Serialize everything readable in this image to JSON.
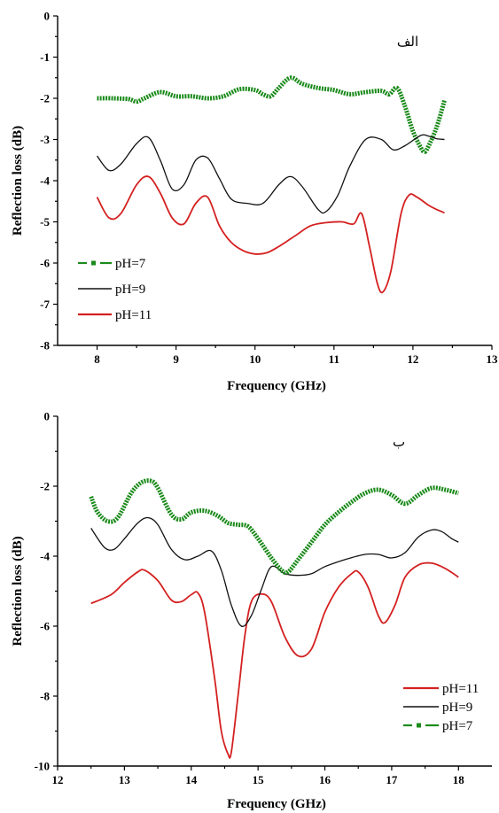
{
  "chart_data": [
    {
      "type": "line",
      "panel_label": "الف",
      "xlabel": "Frequency (GHz)",
      "ylabel": "Reflection loss (dB)",
      "xlim": [
        7.5,
        13
      ],
      "ylim": [
        -8,
        0
      ],
      "xticks": [
        "8",
        "9",
        "10",
        "11",
        "12",
        "13"
      ],
      "yticks": [
        "0",
        "-1",
        "-2",
        "-3",
        "-4",
        "-5",
        "-6",
        "-7",
        "-8"
      ],
      "legend_position": "bottom-left",
      "series": [
        {
          "name": "pH=7",
          "color": "#1a8a1a",
          "style": "dash-dot",
          "x": [
            8.0,
            8.2,
            8.4,
            8.5,
            8.6,
            8.8,
            9.0,
            9.2,
            9.4,
            9.6,
            9.8,
            10.0,
            10.1,
            10.2,
            10.3,
            10.45,
            10.6,
            10.8,
            11.0,
            11.2,
            11.4,
            11.6,
            11.7,
            11.8,
            11.9,
            12.0,
            12.1,
            12.15,
            12.2,
            12.3,
            12.4
          ],
          "y": [
            -2.0,
            -2.0,
            -2.02,
            -2.08,
            -2.0,
            -1.85,
            -1.95,
            -1.95,
            -2.0,
            -1.95,
            -1.78,
            -1.8,
            -1.9,
            -1.95,
            -1.75,
            -1.5,
            -1.65,
            -1.75,
            -1.8,
            -1.9,
            -1.85,
            -1.82,
            -1.9,
            -1.75,
            -2.2,
            -2.8,
            -3.2,
            -3.3,
            -3.15,
            -2.7,
            -2.05
          ]
        },
        {
          "name": "pH=9",
          "color": "#111111",
          "style": "solid",
          "x": [
            8.0,
            8.15,
            8.3,
            8.5,
            8.65,
            8.8,
            8.95,
            9.1,
            9.25,
            9.4,
            9.55,
            9.7,
            9.9,
            10.1,
            10.3,
            10.45,
            10.6,
            10.8,
            10.9,
            11.05,
            11.2,
            11.4,
            11.6,
            11.75,
            11.9,
            12.1,
            12.2,
            12.3,
            12.4
          ],
          "y": [
            -3.4,
            -3.75,
            -3.6,
            -3.1,
            -2.95,
            -3.5,
            -4.2,
            -4.1,
            -3.5,
            -3.45,
            -3.95,
            -4.45,
            -4.55,
            -4.55,
            -4.1,
            -3.9,
            -4.15,
            -4.7,
            -4.75,
            -4.35,
            -3.65,
            -3.0,
            -3.0,
            -3.25,
            -3.15,
            -2.9,
            -2.92,
            -2.98,
            -3.0
          ]
        },
        {
          "name": "pH=11",
          "color": "#d42020",
          "style": "solid",
          "x": [
            8.0,
            8.15,
            8.3,
            8.5,
            8.65,
            8.8,
            8.95,
            9.1,
            9.25,
            9.4,
            9.55,
            9.7,
            9.85,
            10.0,
            10.15,
            10.3,
            10.5,
            10.7,
            10.9,
            11.1,
            11.25,
            11.35,
            11.45,
            11.55,
            11.62,
            11.72,
            11.85,
            11.95,
            12.05,
            12.2,
            12.3,
            12.4
          ],
          "y": [
            -4.4,
            -4.9,
            -4.8,
            -4.1,
            -3.9,
            -4.3,
            -4.9,
            -5.05,
            -4.55,
            -4.4,
            -5.1,
            -5.5,
            -5.7,
            -5.78,
            -5.75,
            -5.6,
            -5.35,
            -5.1,
            -5.02,
            -5.0,
            -5.05,
            -4.8,
            -5.6,
            -6.5,
            -6.7,
            -6.2,
            -4.8,
            -4.35,
            -4.4,
            -4.6,
            -4.7,
            -4.78
          ]
        }
      ]
    },
    {
      "type": "line",
      "panel_label": "ب",
      "xlabel": "Frequency (GHz)",
      "ylabel": "Reflection loss (dB)",
      "xlim": [
        12,
        18.5
      ],
      "ylim": [
        -10,
        0
      ],
      "xticks": [
        "12",
        "13",
        "14",
        "15",
        "16",
        "17",
        "18"
      ],
      "yticks": [
        "0",
        "-2",
        "-4",
        "-6",
        "-8",
        "-10"
      ],
      "legend_position": "bottom-right",
      "series": [
        {
          "name": "pH=11",
          "color": "#d42020",
          "style": "solid",
          "x": [
            12.5,
            12.8,
            13.0,
            13.2,
            13.3,
            13.5,
            13.7,
            13.85,
            14.0,
            14.1,
            14.2,
            14.35,
            14.45,
            14.55,
            14.6,
            14.7,
            14.8,
            14.9,
            15.05,
            15.2,
            15.4,
            15.6,
            15.8,
            16.0,
            16.2,
            16.4,
            16.5,
            16.65,
            16.8,
            16.9,
            17.05,
            17.2,
            17.4,
            17.6,
            17.8,
            18.0
          ],
          "y": [
            -5.35,
            -5.1,
            -4.75,
            -4.45,
            -4.4,
            -4.7,
            -5.25,
            -5.3,
            -5.1,
            -5.05,
            -5.6,
            -7.5,
            -9.0,
            -9.65,
            -9.6,
            -8.0,
            -6.3,
            -5.3,
            -5.08,
            -5.3,
            -6.3,
            -6.85,
            -6.65,
            -5.6,
            -4.9,
            -4.5,
            -4.45,
            -4.9,
            -5.7,
            -5.9,
            -5.4,
            -4.6,
            -4.25,
            -4.2,
            -4.35,
            -4.6
          ]
        },
        {
          "name": "pH=9",
          "color": "#111111",
          "style": "solid",
          "x": [
            12.5,
            12.7,
            12.85,
            13.0,
            13.2,
            13.35,
            13.5,
            13.7,
            13.9,
            14.1,
            14.3,
            14.45,
            14.6,
            14.75,
            14.9,
            15.05,
            15.2,
            15.4,
            15.6,
            15.8,
            16.0,
            16.3,
            16.6,
            16.8,
            17.0,
            17.2,
            17.4,
            17.6,
            17.75,
            17.9,
            18.0
          ],
          "y": [
            -3.2,
            -3.75,
            -3.8,
            -3.5,
            -3.05,
            -2.9,
            -3.1,
            -3.8,
            -4.1,
            -4.0,
            -3.85,
            -4.4,
            -5.4,
            -6.0,
            -5.7,
            -4.95,
            -4.3,
            -4.5,
            -4.55,
            -4.5,
            -4.3,
            -4.1,
            -3.95,
            -3.95,
            -4.05,
            -3.9,
            -3.45,
            -3.25,
            -3.3,
            -3.5,
            -3.6
          ]
        },
        {
          "name": "pH=7",
          "color": "#1a8a1a",
          "style": "dash-dot",
          "x": [
            12.5,
            12.6,
            12.75,
            12.9,
            13.1,
            13.25,
            13.4,
            13.5,
            13.7,
            13.85,
            14.0,
            14.2,
            14.4,
            14.55,
            14.7,
            14.85,
            15.0,
            15.2,
            15.35,
            15.45,
            15.6,
            15.8,
            16.0,
            16.2,
            16.4,
            16.6,
            16.8,
            17.0,
            17.2,
            17.4,
            17.6,
            17.8,
            18.0
          ],
          "y": [
            -2.3,
            -2.75,
            -3.0,
            -2.9,
            -2.2,
            -1.9,
            -1.85,
            -2.05,
            -2.8,
            -2.95,
            -2.75,
            -2.7,
            -2.85,
            -3.05,
            -3.1,
            -3.15,
            -3.5,
            -4.05,
            -4.4,
            -4.45,
            -4.1,
            -3.6,
            -3.1,
            -2.75,
            -2.45,
            -2.2,
            -2.1,
            -2.25,
            -2.5,
            -2.25,
            -2.05,
            -2.1,
            -2.2
          ]
        }
      ]
    }
  ]
}
